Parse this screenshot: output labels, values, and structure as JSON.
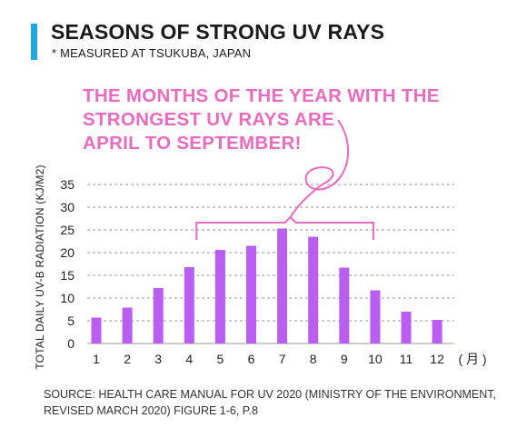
{
  "header": {
    "title": "SEASONS OF STRONG UV RAYS",
    "subtitle": "* MEASURED AT TSUKUBA, JAPAN"
  },
  "callout": {
    "lines": [
      "THE MONTHS OF THE YEAR WITH THE",
      "STRONGEST UV RAYS ARE",
      "APRIL TO SEPTEMBER!"
    ]
  },
  "source": {
    "lines": [
      "SOURCE: HEALTH CARE MANUAL FOR UV 2020 (MINISTRY OF THE ENVIRONMENT,",
      "REVISED MARCH 2020) FIGURE 1-6, P.8"
    ]
  },
  "colors": {
    "accent": "#1fa9e1",
    "bars": "#b95ef0",
    "callout": "#e86bbf",
    "grid": "#9a9a9a"
  },
  "chart_data": {
    "type": "bar",
    "categories": [
      "1",
      "2",
      "3",
      "4",
      "5",
      "6",
      "7",
      "8",
      "9",
      "10",
      "11",
      "12"
    ],
    "values": [
      5.7,
      7.9,
      12.2,
      16.8,
      20.6,
      21.5,
      25.3,
      23.5,
      16.7,
      11.7,
      7.0,
      5.2
    ],
    "x_unit_label": "( 月 )",
    "ylabel": "TOTAL DAILY UV-B RADIATION (KJ/M2)",
    "ylim": [
      0,
      35
    ],
    "yticks": [
      0,
      5,
      10,
      15,
      20,
      25,
      30,
      35
    ],
    "grid": true,
    "highlight_range": [
      "4",
      "10"
    ]
  }
}
